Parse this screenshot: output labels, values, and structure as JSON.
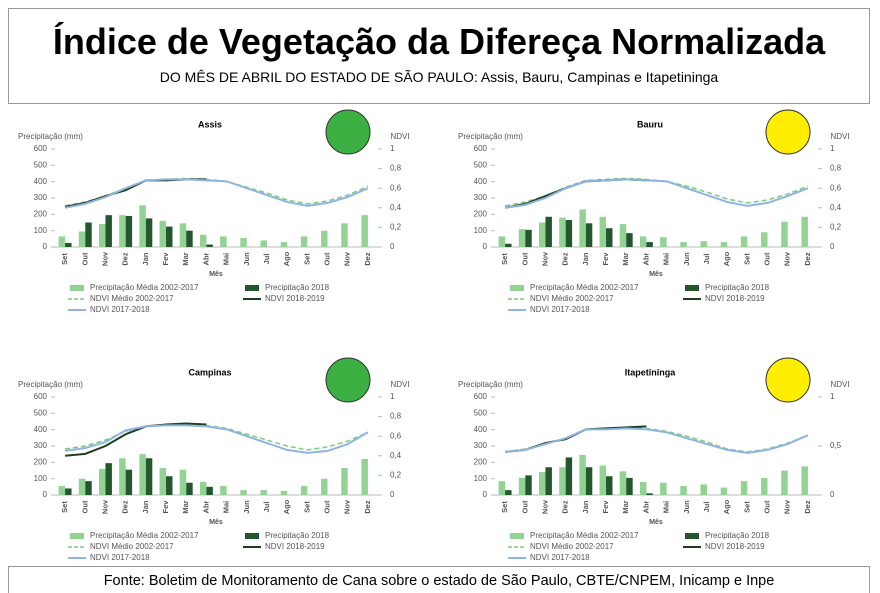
{
  "header": {
    "title": "Índice de Vegetação da Difereça Normalizada",
    "subtitle": "DO MÊS DE ABRIL DO ESTADO DE SÃO PAULO: Assis, Bauru, Campinas e Itapetininga"
  },
  "footer": {
    "source": "Fonte: Boletim de Monitoramento de Cana sobre o estado de São Paulo, CBTE/CNPEM,  Inicamp e Inpe"
  },
  "chart_data": [
    {
      "type": "bar",
      "title": "Assis",
      "status_color": "#3cb043",
      "y_label": "Precipitação (mm)",
      "y2_label": "NDVI",
      "x_label": "Mês",
      "categories": [
        "Set",
        "Out",
        "Nov",
        "Dez",
        "Jan",
        "Fev",
        "Mar",
        "Abr",
        "Mai",
        "Jun",
        "Jul",
        "Ago",
        "Set",
        "Out",
        "Nov",
        "Dez"
      ],
      "ylim": [
        0,
        600
      ],
      "yticks": [
        0,
        100,
        200,
        300,
        400,
        500,
        600
      ],
      "y2lim": [
        0,
        1
      ],
      "y2ticks": [
        0,
        {
          "value": 0.2,
          "label": "0,2"
        },
        {
          "value": 0.4,
          "label": "0,4"
        },
        {
          "value": 0.6,
          "label": "0,6"
        },
        {
          "value": 0.8,
          "label": "0,8"
        },
        1
      ],
      "series": [
        {
          "name": "Precipitação Média 2002-2017",
          "color": "#92d293",
          "values": [
            65,
            95,
            140,
            195,
            255,
            160,
            145,
            75,
            65,
            55,
            40,
            30,
            65,
            100,
            145,
            195
          ]
        },
        {
          "name": "Precipitação 2018",
          "color": "#24572e",
          "values": [
            25,
            150,
            195,
            190,
            175,
            125,
            100,
            15,
            null,
            null,
            null,
            null,
            null,
            null,
            null,
            null
          ]
        },
        {
          "name": "NDVI Médio 2002-2017",
          "color": "#7ccc7c",
          "axis": "y2",
          "dash": true,
          "values": [
            0.42,
            0.46,
            0.52,
            0.6,
            0.68,
            0.69,
            0.7,
            0.69,
            0.67,
            0.61,
            0.55,
            0.48,
            0.44,
            0.47,
            0.53,
            0.62
          ]
        },
        {
          "name": "NDVI 2018-2019",
          "color": "#1d3f1d",
          "axis": "y2",
          "values": [
            0.41,
            0.45,
            0.52,
            0.58,
            0.68,
            0.68,
            0.69,
            0.69,
            null,
            null,
            null,
            null,
            null,
            null,
            null,
            null
          ]
        },
        {
          "name": "NDVI 2017-2018",
          "color": "#8fb4e3",
          "axis": "y2",
          "values": [
            0.4,
            0.44,
            0.51,
            0.6,
            0.68,
            0.69,
            0.69,
            0.68,
            0.67,
            0.6,
            0.53,
            0.46,
            0.42,
            0.45,
            0.51,
            0.6
          ]
        }
      ]
    },
    {
      "type": "bar",
      "title": "Bauru",
      "status_color": "#ffee00",
      "y_label": "Precipitação (mm)",
      "y2_label": "NDVI",
      "x_label": "Mês",
      "categories": [
        "Set",
        "Out",
        "Nov",
        "Dez",
        "Jan",
        "Fev",
        "Mar",
        "Abr",
        "Mai",
        "Jun",
        "Jul",
        "Ago",
        "Set",
        "Out",
        "Nov",
        "Dez"
      ],
      "ylim": [
        0,
        600
      ],
      "yticks": [
        0,
        100,
        200,
        300,
        400,
        500,
        600
      ],
      "y2lim": [
        0,
        1
      ],
      "y2ticks": [
        0,
        {
          "value": 0.2,
          "label": "0,2"
        },
        {
          "value": 0.4,
          "label": "0,4"
        },
        {
          "value": 0.6,
          "label": "0,6"
        },
        {
          "value": 0.8,
          "label": "0,8"
        },
        1
      ],
      "series": [
        {
          "name": "Precipitação Média 2002-2017",
          "color": "#92d293",
          "values": [
            65,
            110,
            150,
            180,
            230,
            185,
            140,
            65,
            60,
            30,
            35,
            30,
            65,
            90,
            155,
            185
          ]
        },
        {
          "name": "Precipitação 2018",
          "color": "#24572e",
          "values": [
            20,
            105,
            185,
            165,
            145,
            115,
            85,
            30,
            null,
            null,
            null,
            null,
            null,
            null,
            null,
            null
          ]
        },
        {
          "name": "NDVI Médio 2002-2017",
          "color": "#7ccc7c",
          "axis": "y2",
          "dash": true,
          "values": [
            0.42,
            0.46,
            0.52,
            0.61,
            0.68,
            0.69,
            0.7,
            0.69,
            0.67,
            0.62,
            0.56,
            0.49,
            0.45,
            0.48,
            0.54,
            0.62
          ]
        },
        {
          "name": "NDVI 2018-2019",
          "color": "#1d3f1d",
          "axis": "y2",
          "values": [
            0.4,
            0.44,
            0.52,
            0.6,
            0.67,
            0.68,
            0.69,
            0.68,
            null,
            null,
            null,
            null,
            null,
            null,
            null,
            null
          ]
        },
        {
          "name": "NDVI 2017-2018",
          "color": "#8fb4e3",
          "axis": "y2",
          "values": [
            0.4,
            0.43,
            0.5,
            0.6,
            0.67,
            0.68,
            0.69,
            0.68,
            0.67,
            0.6,
            0.53,
            0.46,
            0.42,
            0.45,
            0.52,
            0.6
          ]
        }
      ]
    },
    {
      "type": "bar",
      "title": "Campinas",
      "status_color": "#3cb043",
      "y_label": "Precipitação (mm)",
      "y2_label": "NDVI",
      "x_label": "Mês",
      "categories": [
        "Set",
        "Out",
        "Nov",
        "Dez",
        "Jan",
        "Fev",
        "Mar",
        "Abr",
        "Mai",
        "Jun",
        "Jul",
        "Ago",
        "Set",
        "Out",
        "Nov",
        "Dez"
      ],
      "ylim": [
        0,
        600
      ],
      "yticks": [
        0,
        100,
        200,
        300,
        400,
        500,
        600
      ],
      "y2lim": [
        0,
        1
      ],
      "y2ticks": [
        0,
        {
          "value": 0.2,
          "label": "0,2"
        },
        {
          "value": 0.4,
          "label": "0,4"
        },
        {
          "value": 0.6,
          "label": "0,6"
        },
        {
          "value": 0.8,
          "label": "0,8"
        },
        1
      ],
      "series": [
        {
          "name": "Precipitação Média 2002-2017",
          "color": "#92d293",
          "values": [
            55,
            100,
            160,
            225,
            250,
            165,
            155,
            80,
            55,
            30,
            30,
            25,
            55,
            100,
            165,
            220
          ]
        },
        {
          "name": "Precipitação 2018",
          "color": "#24572e",
          "values": [
            40,
            85,
            195,
            155,
            225,
            115,
            75,
            50,
            null,
            null,
            null,
            null,
            null,
            null,
            null,
            null
          ]
        },
        {
          "name": "NDVI Médio 2002-2017",
          "color": "#7ccc7c",
          "axis": "y2",
          "dash": true,
          "values": [
            0.47,
            0.5,
            0.56,
            0.65,
            0.7,
            0.71,
            0.72,
            0.71,
            0.68,
            0.62,
            0.56,
            0.5,
            0.46,
            0.49,
            0.55,
            0.64
          ]
        },
        {
          "name": "NDVI 2018-2019",
          "color": "#1d3f1d",
          "axis": "y2",
          "values": [
            0.4,
            0.42,
            0.5,
            0.62,
            0.7,
            0.72,
            0.73,
            0.72,
            null,
            null,
            null,
            null,
            null,
            null,
            null,
            null
          ]
        },
        {
          "name": "NDVI 2017-2018",
          "color": "#8fb4e3",
          "axis": "y2",
          "values": [
            0.45,
            0.48,
            0.54,
            0.66,
            0.7,
            0.71,
            0.71,
            0.7,
            0.67,
            0.6,
            0.53,
            0.46,
            0.43,
            0.45,
            0.52,
            0.64
          ]
        }
      ]
    },
    {
      "type": "bar",
      "title": "Itapetininga",
      "status_color": "#ffee00",
      "y_label": "Precipitação (mm)",
      "y2_label": "NDVI",
      "x_label": "Mês",
      "categories": [
        "Set",
        "Out",
        "Nov",
        "Dez",
        "Jan",
        "Fev",
        "Mar",
        "Abr",
        "Mai",
        "Jun",
        "Jul",
        "Ago",
        "Set",
        "Out",
        "Nov",
        "Dez"
      ],
      "ylim": [
        0,
        600
      ],
      "yticks": [
        0,
        100,
        200,
        300,
        400,
        500,
        600
      ],
      "y2lim": [
        0,
        1
      ],
      "y2ticks": [
        0,
        {
          "value": 0.5,
          "label": "0,5"
        },
        1
      ],
      "series": [
        {
          "name": "Precipitação Média 2002-2017",
          "color": "#92d293",
          "values": [
            85,
            105,
            140,
            170,
            245,
            180,
            145,
            80,
            75,
            55,
            65,
            45,
            85,
            105,
            150,
            175
          ]
        },
        {
          "name": "Precipitação 2018",
          "color": "#24572e",
          "values": [
            30,
            120,
            170,
            230,
            170,
            115,
            105,
            10,
            null,
            null,
            null,
            null,
            null,
            null,
            null,
            null
          ]
        },
        {
          "name": "NDVI Médio 2002-2017",
          "color": "#7ccc7c",
          "axis": "y2",
          "dash": true,
          "values": [
            0.44,
            0.47,
            0.52,
            0.58,
            0.67,
            0.68,
            0.69,
            0.68,
            0.65,
            0.6,
            0.54,
            0.47,
            0.44,
            0.47,
            0.53,
            0.61
          ]
        },
        {
          "name": "NDVI 2018-2019",
          "color": "#1d3f1d",
          "axis": "y2",
          "values": [
            0.44,
            0.46,
            0.53,
            0.57,
            0.67,
            0.68,
            0.69,
            0.7,
            null,
            null,
            null,
            null,
            null,
            null,
            null,
            null
          ]
        },
        {
          "name": "NDVI 2017-2018",
          "color": "#8fb4e3",
          "axis": "y2",
          "values": [
            0.44,
            0.46,
            0.52,
            0.58,
            0.67,
            0.67,
            0.68,
            0.67,
            0.64,
            0.58,
            0.52,
            0.46,
            0.43,
            0.46,
            0.52,
            0.61
          ]
        }
      ]
    }
  ]
}
